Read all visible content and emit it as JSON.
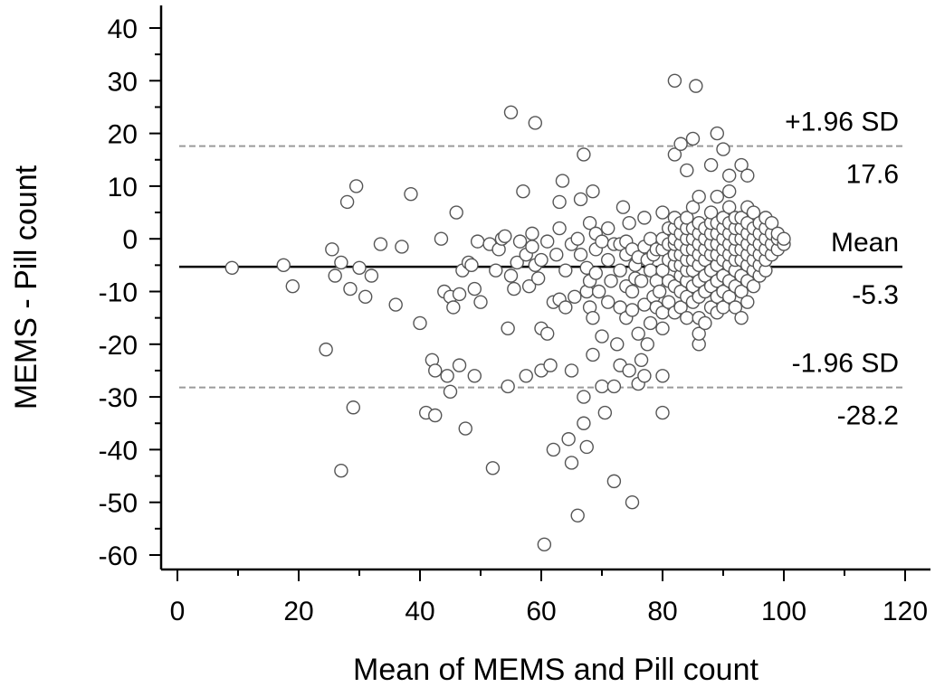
{
  "chart_data": {
    "type": "scatter",
    "title": "",
    "xlabel": "Mean of MEMS and Pill count",
    "ylabel": "MEMS - Pill count",
    "xlim": [
      0,
      120
    ],
    "ylim": [
      -60,
      40
    ],
    "x_ticks": [
      0,
      20,
      40,
      60,
      80,
      100,
      120
    ],
    "y_ticks": [
      40,
      30,
      20,
      10,
      0,
      -10,
      -20,
      -30,
      -40,
      -50,
      -60
    ],
    "grid": false,
    "reference_lines": [
      {
        "name": "+1.96 SD",
        "value": 17.6,
        "label_top": "+1.96 SD",
        "label_bottom": "17.6",
        "style": "dashed",
        "color": "#9a9a9a"
      },
      {
        "name": "Mean",
        "value": -5.3,
        "label_top": "Mean",
        "label_bottom": "-5.3",
        "style": "solid",
        "color": "#000000"
      },
      {
        "name": "-1.96 SD",
        "value": -28.2,
        "label_top": "-1.96 SD",
        "label_bottom": "-28.2",
        "style": "dashed",
        "color": "#9a9a9a"
      }
    ],
    "marker": {
      "shape": "open-circle",
      "stroke": "#555555",
      "fill": "#ffffff"
    },
    "points": [
      [
        9,
        -5.5
      ],
      [
        17.5,
        -5
      ],
      [
        19,
        -9
      ],
      [
        24.5,
        -21
      ],
      [
        25.5,
        -2
      ],
      [
        26,
        -7
      ],
      [
        27,
        -4.5
      ],
      [
        27,
        -44
      ],
      [
        28,
        7
      ],
      [
        28.5,
        -9.5
      ],
      [
        29,
        -32
      ],
      [
        29.5,
        10
      ],
      [
        30,
        -5.5
      ],
      [
        31,
        -11
      ],
      [
        32,
        -7
      ],
      [
        33.5,
        -1
      ],
      [
        36,
        -12.5
      ],
      [
        37,
        -1.5
      ],
      [
        38.5,
        8.5
      ],
      [
        40,
        -16
      ],
      [
        41,
        -33
      ],
      [
        42,
        -23
      ],
      [
        42.5,
        -25
      ],
      [
        42.5,
        -33.5
      ],
      [
        43.5,
        0
      ],
      [
        44,
        -10
      ],
      [
        44.5,
        -26
      ],
      [
        45,
        -11
      ],
      [
        45,
        -29
      ],
      [
        45.5,
        -13
      ],
      [
        46,
        5
      ],
      [
        46.5,
        -10.5
      ],
      [
        46.5,
        -24
      ],
      [
        47,
        -6
      ],
      [
        47.5,
        -36
      ],
      [
        48,
        -4.5
      ],
      [
        48.5,
        -5
      ],
      [
        49,
        -26
      ],
      [
        49,
        -9.5
      ],
      [
        49.5,
        -0.5
      ],
      [
        50,
        -12
      ],
      [
        51.5,
        -1
      ],
      [
        52,
        -43.5
      ],
      [
        52.5,
        -6
      ],
      [
        53,
        -2
      ],
      [
        53.5,
        0
      ],
      [
        54,
        0.5
      ],
      [
        54.5,
        -28
      ],
      [
        54.5,
        -17
      ],
      [
        55,
        24
      ],
      [
        55,
        -7
      ],
      [
        55.5,
        -9.5
      ],
      [
        56,
        -4.5
      ],
      [
        56.5,
        -0.5
      ],
      [
        57,
        9
      ],
      [
        57.5,
        -26
      ],
      [
        57.5,
        -3
      ],
      [
        58,
        -9
      ],
      [
        58.5,
        -1.5
      ],
      [
        58.5,
        1
      ],
      [
        59,
        22
      ],
      [
        59,
        -5
      ],
      [
        59.5,
        -7.5
      ],
      [
        60,
        -25
      ],
      [
        60,
        -17
      ],
      [
        60,
        -4
      ],
      [
        60.5,
        -58
      ],
      [
        61,
        -18
      ],
      [
        61,
        -0.5
      ],
      [
        61.5,
        -24
      ],
      [
        62,
        -40
      ],
      [
        62,
        -12
      ],
      [
        62.5,
        -3
      ],
      [
        63,
        -11.5
      ],
      [
        63,
        2
      ],
      [
        63,
        7
      ],
      [
        63.5,
        11
      ],
      [
        64,
        -13
      ],
      [
        64,
        -6
      ],
      [
        64.5,
        -38
      ],
      [
        65,
        -42.5
      ],
      [
        65,
        -25
      ],
      [
        65,
        -1
      ],
      [
        65.5,
        -11
      ],
      [
        66,
        -52.5
      ],
      [
        66,
        0
      ],
      [
        66.5,
        7.5
      ],
      [
        66.5,
        -3
      ],
      [
        67,
        -35
      ],
      [
        67,
        16
      ],
      [
        67,
        -30
      ],
      [
        67.5,
        -39.5
      ],
      [
        67.5,
        -10
      ],
      [
        67.5,
        -5.5
      ],
      [
        68,
        3
      ],
      [
        68,
        -13
      ],
      [
        68,
        -8
      ],
      [
        68.5,
        -22
      ],
      [
        68.5,
        -15
      ],
      [
        68.5,
        9
      ],
      [
        69,
        1
      ],
      [
        69,
        -2
      ],
      [
        69,
        -6.5
      ],
      [
        69.5,
        -10
      ],
      [
        70,
        -28
      ],
      [
        70,
        -18.5
      ],
      [
        70,
        -0.5
      ],
      [
        70.5,
        -33
      ],
      [
        71,
        -4
      ],
      [
        71,
        -12
      ],
      [
        71,
        2
      ],
      [
        71.5,
        -8
      ],
      [
        72,
        -46
      ],
      [
        72,
        -28
      ],
      [
        72,
        -1
      ],
      [
        72.5,
        -20
      ],
      [
        73,
        -24
      ],
      [
        73,
        -13
      ],
      [
        73,
        -6
      ],
      [
        73,
        -1
      ],
      [
        73.5,
        6
      ],
      [
        74,
        -15
      ],
      [
        74,
        -9
      ],
      [
        74,
        -3
      ],
      [
        74,
        -0.5
      ],
      [
        74.5,
        -25
      ],
      [
        74.5,
        3
      ],
      [
        75,
        -50
      ],
      [
        75,
        -13.5
      ],
      [
        75,
        -10
      ],
      [
        75,
        -2
      ],
      [
        75.5,
        -5
      ],
      [
        75.5,
        -7.5
      ],
      [
        76,
        -27.5
      ],
      [
        76,
        -18
      ],
      [
        76,
        -3.5
      ],
      [
        76.5,
        -23
      ],
      [
        76.5,
        -8
      ],
      [
        77,
        -26
      ],
      [
        77,
        -12.5
      ],
      [
        77,
        -1.5
      ],
      [
        77,
        4
      ],
      [
        77.5,
        -20
      ],
      [
        77.5,
        -4
      ],
      [
        78,
        -16
      ],
      [
        78,
        -6
      ],
      [
        78,
        0
      ],
      [
        78.5,
        -11
      ],
      [
        78.5,
        -3
      ],
      [
        79,
        -13
      ],
      [
        79,
        -8
      ],
      [
        79,
        -2
      ],
      [
        79.5,
        -10
      ],
      [
        80,
        -33
      ],
      [
        80,
        -26
      ],
      [
        80,
        -17
      ],
      [
        80,
        -14
      ],
      [
        80,
        -6
      ],
      [
        80,
        -2
      ],
      [
        80,
        0
      ],
      [
        80,
        5
      ],
      [
        81,
        -12
      ],
      [
        81,
        -8
      ],
      [
        81,
        -4
      ],
      [
        81,
        -1
      ],
      [
        81,
        2
      ],
      [
        82,
        30
      ],
      [
        82,
        16
      ],
      [
        82,
        -14
      ],
      [
        82,
        -9
      ],
      [
        82,
        -5
      ],
      [
        82,
        -3
      ],
      [
        82,
        -1
      ],
      [
        82,
        0
      ],
      [
        82,
        2
      ],
      [
        82,
        4
      ],
      [
        83,
        18
      ],
      [
        83,
        -13
      ],
      [
        83,
        -10
      ],
      [
        83,
        -7
      ],
      [
        83,
        -5
      ],
      [
        83,
        -3
      ],
      [
        83,
        -1
      ],
      [
        83,
        1
      ],
      [
        83,
        3
      ],
      [
        84,
        13
      ],
      [
        84,
        -15
      ],
      [
        84,
        -11
      ],
      [
        84,
        -8
      ],
      [
        84,
        -6
      ],
      [
        84,
        -4
      ],
      [
        84,
        -2
      ],
      [
        84,
        0
      ],
      [
        84,
        2
      ],
      [
        84,
        4
      ],
      [
        85,
        19
      ],
      [
        85,
        6
      ],
      [
        85,
        -12
      ],
      [
        85,
        -9
      ],
      [
        85,
        -6
      ],
      [
        85,
        -4
      ],
      [
        85,
        -2
      ],
      [
        85,
        0
      ],
      [
        85,
        2
      ],
      [
        85.5,
        29
      ],
      [
        86,
        -20
      ],
      [
        86,
        -18
      ],
      [
        86,
        -15
      ],
      [
        86,
        -11
      ],
      [
        86,
        -8
      ],
      [
        86,
        -5
      ],
      [
        86,
        -3
      ],
      [
        86,
        -1
      ],
      [
        86,
        1
      ],
      [
        86,
        3
      ],
      [
        86,
        8
      ],
      [
        87,
        -16
      ],
      [
        87,
        -10
      ],
      [
        87,
        -7
      ],
      [
        87,
        -4
      ],
      [
        87,
        -2
      ],
      [
        87,
        0
      ],
      [
        87,
        2
      ],
      [
        88,
        14
      ],
      [
        88,
        -13
      ],
      [
        88,
        -9
      ],
      [
        88,
        -6
      ],
      [
        88,
        -3
      ],
      [
        88,
        -1
      ],
      [
        88,
        1
      ],
      [
        88,
        3
      ],
      [
        88,
        5
      ],
      [
        89,
        20
      ],
      [
        89,
        -14
      ],
      [
        89,
        -11
      ],
      [
        89,
        -8
      ],
      [
        89,
        -5
      ],
      [
        89,
        -3
      ],
      [
        89,
        -1
      ],
      [
        89,
        1
      ],
      [
        89,
        3
      ],
      [
        89,
        8
      ],
      [
        90,
        17
      ],
      [
        90,
        -13
      ],
      [
        90,
        -10
      ],
      [
        90,
        -7
      ],
      [
        90,
        -4
      ],
      [
        90,
        -2
      ],
      [
        90,
        0
      ],
      [
        90,
        2
      ],
      [
        90,
        4
      ],
      [
        91,
        12
      ],
      [
        91,
        -11
      ],
      [
        91,
        -8
      ],
      [
        91,
        -5
      ],
      [
        91,
        -3
      ],
      [
        91,
        -1
      ],
      [
        91,
        1
      ],
      [
        91,
        3
      ],
      [
        91,
        6
      ],
      [
        91,
        9
      ],
      [
        92,
        -13
      ],
      [
        92,
        -9
      ],
      [
        92,
        -6
      ],
      [
        92,
        -4
      ],
      [
        92,
        -2
      ],
      [
        92,
        0
      ],
      [
        92,
        2
      ],
      [
        92,
        4
      ],
      [
        93,
        14
      ],
      [
        93,
        -15
      ],
      [
        93,
        -10
      ],
      [
        93,
        -7
      ],
      [
        93,
        -4
      ],
      [
        93,
        -2
      ],
      [
        93,
        0
      ],
      [
        93,
        2
      ],
      [
        93,
        4
      ],
      [
        94,
        12
      ],
      [
        94,
        -12
      ],
      [
        94,
        -8
      ],
      [
        94,
        -5
      ],
      [
        94,
        -3
      ],
      [
        94,
        -1
      ],
      [
        94,
        1
      ],
      [
        94,
        3
      ],
      [
        94,
        6
      ],
      [
        95,
        -9
      ],
      [
        95,
        -6
      ],
      [
        95,
        -4
      ],
      [
        95,
        -2
      ],
      [
        95,
        0
      ],
      [
        95,
        2
      ],
      [
        95,
        5
      ],
      [
        96,
        -7
      ],
      [
        96,
        -5
      ],
      [
        96,
        -3
      ],
      [
        96,
        -1
      ],
      [
        96,
        1
      ],
      [
        96,
        3
      ],
      [
        97,
        -6
      ],
      [
        97,
        -4
      ],
      [
        97,
        -2
      ],
      [
        97,
        0
      ],
      [
        97,
        2
      ],
      [
        97,
        4
      ],
      [
        98,
        -3
      ],
      [
        98,
        -1
      ],
      [
        98,
        1
      ],
      [
        98,
        3
      ],
      [
        99,
        -2
      ],
      [
        99,
        0
      ],
      [
        99,
        1
      ],
      [
        100,
        -1
      ],
      [
        100,
        0
      ]
    ]
  }
}
